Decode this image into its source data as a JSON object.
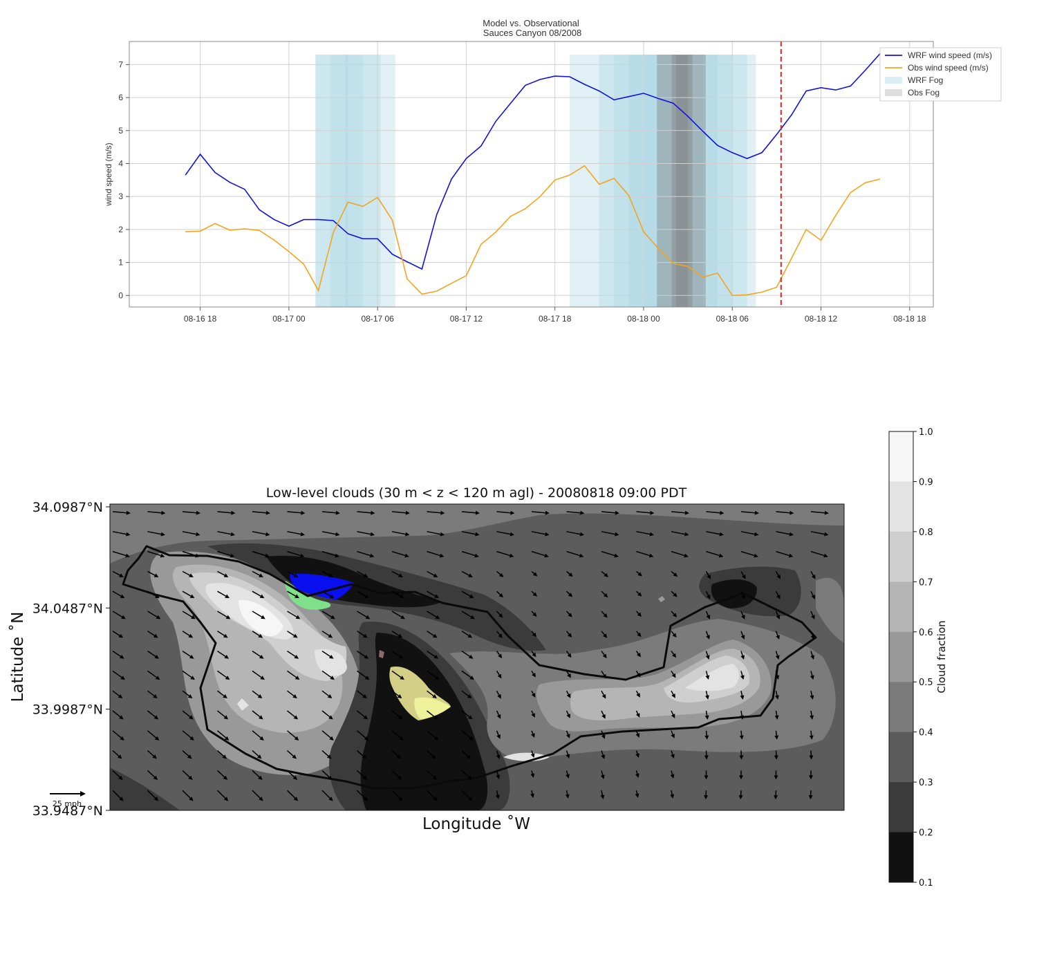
{
  "chart_data": [
    {
      "type": "line",
      "title": "Model vs. Observational",
      "subtitle": "Sauces Canyon 08/2008",
      "xlabel": "",
      "ylabel": "wind speed (m/s)",
      "ylim": [
        -0.35,
        7.7
      ],
      "yticks": [
        0,
        1,
        2,
        3,
        4,
        5,
        6,
        7
      ],
      "xlim_hours": [
        -4.8,
        49.6
      ],
      "xticks": [
        {
          "label": "08-16 18",
          "hour": 0
        },
        {
          "label": "08-17 00",
          "hour": 6
        },
        {
          "label": "08-17 06",
          "hour": 12
        },
        {
          "label": "08-17 12",
          "hour": 18
        },
        {
          "label": "08-17 18",
          "hour": 24
        },
        {
          "label": "08-18 00",
          "hour": 30
        },
        {
          "label": "08-18 06",
          "hour": 36
        },
        {
          "label": "08-18 12",
          "hour": 42
        },
        {
          "label": "08-18 18",
          "hour": 48
        }
      ],
      "grid": true,
      "legend_position": "top-right",
      "series": [
        {
          "name": "WRF wind speed (m/s)",
          "color": "#1010e0",
          "hours": [
            -1,
            0,
            1,
            2,
            3,
            4,
            5,
            6,
            7,
            8,
            9,
            10,
            11,
            12,
            13,
            14,
            15,
            16,
            17,
            18,
            19,
            20,
            21,
            22,
            23,
            24,
            25,
            26,
            27,
            28,
            29,
            30,
            31,
            32,
            33,
            34,
            35,
            36,
            37,
            38,
            39,
            40,
            41,
            42,
            43,
            44,
            45,
            46
          ],
          "values": [
            3.65,
            4.28,
            3.73,
            3.43,
            3.22,
            2.6,
            2.3,
            2.1,
            2.3,
            2.3,
            2.27,
            1.87,
            1.72,
            1.72,
            1.25,
            1.02,
            0.8,
            2.45,
            3.53,
            4.15,
            4.53,
            5.28,
            5.83,
            6.37,
            6.55,
            6.65,
            6.63,
            6.4,
            6.2,
            5.93,
            6.03,
            6.13,
            5.97,
            5.83,
            5.43,
            4.98,
            4.55,
            4.33,
            4.15,
            4.33,
            4.88,
            5.47,
            6.2,
            6.3,
            6.23,
            6.35,
            6.83,
            7.33
          ]
        },
        {
          "name": "Obs wind speed (m/s)",
          "color": "#f4a41c",
          "hours": [
            -1,
            0,
            1,
            2,
            3,
            4,
            5,
            6,
            7,
            8,
            9,
            10,
            11,
            12,
            13,
            14,
            15,
            16,
            17,
            18,
            19,
            20,
            21,
            22,
            23,
            24,
            25,
            26,
            27,
            28,
            29,
            30,
            31,
            32,
            33,
            34,
            35,
            36,
            37,
            38,
            39,
            40,
            41,
            42,
            43,
            44,
            45,
            46
          ],
          "values": [
            1.93,
            1.95,
            2.18,
            1.98,
            2.02,
            1.97,
            1.68,
            1.33,
            0.95,
            0.15,
            1.9,
            2.83,
            2.7,
            2.97,
            2.28,
            0.5,
            0.04,
            0.13,
            0.37,
            0.6,
            1.55,
            1.92,
            2.4,
            2.63,
            3.0,
            3.5,
            3.65,
            3.93,
            3.37,
            3.55,
            3.03,
            1.93,
            1.42,
            0.97,
            0.88,
            0.55,
            0.68,
            0.0,
            0.02,
            0.1,
            0.25,
            1.12,
            2.0,
            1.67,
            2.43,
            3.12,
            3.42,
            3.53
          ]
        }
      ],
      "shaded_regions": [
        {
          "name": "WRF Fog",
          "color": "#add8e6",
          "ranges": [
            [
              7.8,
              13.2
            ],
            [
              7.8,
              10.0
            ],
            [
              8.8,
              12.2
            ],
            [
              9.8,
              11.0
            ],
            [
              25.0,
              37.6
            ],
            [
              27.0,
              37.0
            ],
            [
              28.0,
              36.0
            ],
            [
              29.0,
              35.0
            ],
            [
              30.0,
              32.0
            ],
            [
              33.0,
              34.0
            ]
          ]
        },
        {
          "name": "Obs Fog",
          "color": "#808080",
          "ranges": [
            [
              30.9,
              34.2
            ],
            [
              31.9,
              33.3
            ],
            [
              32.2,
              33.0
            ]
          ]
        }
      ],
      "vline_hour": 39.3,
      "vline_color": "#e62020",
      "legend": [
        "WRF wind speed (m/s)",
        "Obs wind speed (m/s)",
        "WRF Fog",
        "Obs Fog"
      ]
    },
    {
      "type": "heatmap",
      "title": "Low-level clouds (30 m < z < 120 m agl) - 20080818 09:00 PDT",
      "xlabel": "Longitude $^\\circ$W",
      "ylabel": "Latitude $^\\circ$N",
      "yticks": [
        "34.0987°N",
        "34.0487°N",
        "33.9987°N",
        "33.9487°N"
      ],
      "colorbar_label": "Cloud fraction",
      "colorbar_ticks": [
        "1.0",
        "0.9",
        "0.8",
        "0.7",
        "0.6",
        "0.5",
        "0.4",
        "0.3",
        "0.2",
        "0.1"
      ],
      "colorbar_colors": [
        "#f6f6f6",
        "#e3e3e3",
        "#cfcfcf",
        "#b5b5b5",
        "#999999",
        "#7b7b7b",
        "#5c5c5c",
        "#3b3b3b",
        "#111111"
      ],
      "quiver_key_label": "25 mph"
    }
  ],
  "display": {
    "top_title": "Model vs. Observational",
    "top_subtitle": "Sauces Canyon 08/2008",
    "top_ylabel": "wind speed (m/s)",
    "map_title": "Low-level clouds (30 m < z < 120 m agl) - 20080818 09:00 PDT",
    "map_xlabel": "Longitude ˚W",
    "map_ylabel": "Latitude ˚N",
    "cb_label": "Cloud fraction",
    "key_label": "25 mph"
  }
}
